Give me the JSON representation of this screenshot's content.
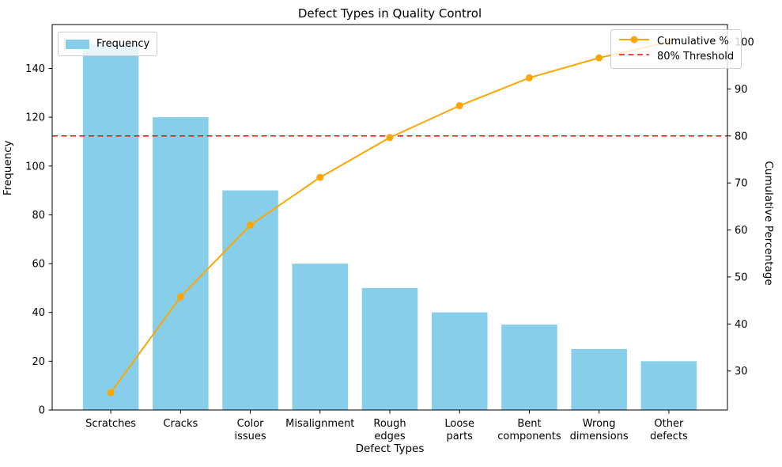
{
  "title": "Defect Types in Quality Control",
  "xlabel": "Defect Types",
  "ylabel_left": "Frequency",
  "ylabel_right": "Cumulative Percentage",
  "legend_left": {
    "frequency_label": "Frequency"
  },
  "legend_right": {
    "cumulative_label": "Cumulative %",
    "threshold_label": "80% Threshold"
  },
  "colors": {
    "bar": "#87CEEB",
    "cumulative_line": "#FFA500",
    "threshold_line": "#FF0000",
    "text": "#000000",
    "spine": "#000000"
  },
  "chart_data": {
    "type": "bar",
    "subtype": "pareto (bar + cumulative line)",
    "title": "Defect Types in Quality Control",
    "xlabel": "Defect Types",
    "categories": [
      "Scratches",
      "Cracks",
      "Color\nissues",
      "Misalignment",
      "Rough\nedges",
      "Loose\nparts",
      "Bent\ncomponents",
      "Wrong\ndimensions",
      "Other\ndefects"
    ],
    "series": [
      {
        "name": "Frequency",
        "type": "bar",
        "axis": "left",
        "values": [
          150,
          120,
          90,
          60,
          50,
          40,
          35,
          25,
          20
        ]
      },
      {
        "name": "Cumulative %",
        "type": "line",
        "axis": "right",
        "values": [
          25.42,
          45.76,
          61.02,
          71.19,
          79.66,
          86.44,
          92.37,
          96.61,
          100.0
        ]
      }
    ],
    "threshold": {
      "value": 80,
      "label": "80% Threshold",
      "axis": "right",
      "style": "dashed"
    },
    "axes": {
      "left": {
        "label": "Frequency",
        "lim": [
          0,
          158
        ],
        "ticks": [
          0,
          20,
          40,
          60,
          80,
          100,
          120,
          140
        ]
      },
      "right": {
        "label": "Cumulative Percentage",
        "lim": [
          21.7,
          103.7
        ],
        "ticks": [
          30,
          40,
          50,
          60,
          70,
          80,
          90,
          100
        ]
      }
    },
    "grid": false,
    "legend_positions": {
      "frequency": "upper left",
      "lines": "upper right"
    }
  }
}
